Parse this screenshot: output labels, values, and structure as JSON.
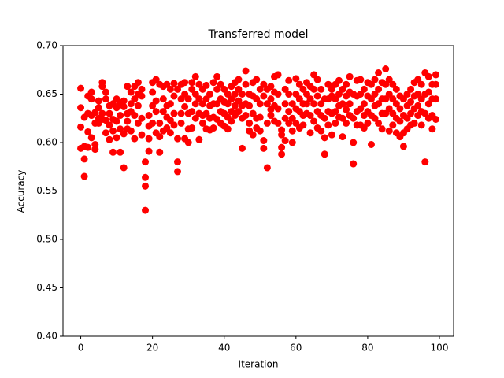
{
  "chart_data": {
    "type": "scatter",
    "title": "Transferred model",
    "xlabel": "Iteration",
    "ylabel": "Accuracy",
    "color": "#ff0000",
    "xlim": [
      -4.95,
      103.95
    ],
    "xticks": [
      0,
      20,
      40,
      60,
      80,
      100
    ],
    "ylim": [
      0.4,
      0.7
    ],
    "yticks": [
      {
        "value": 0.4,
        "label": "0.40"
      },
      0.45,
      {
        "value": 0.5,
        "label": "0.50"
      },
      0.55,
      {
        "value": 0.6,
        "label": "0.60"
      },
      0.65,
      {
        "value": 0.7,
        "label": "0.70"
      }
    ],
    "x": [
      0,
      0,
      0,
      0,
      1,
      1,
      1,
      1,
      2,
      2,
      2,
      2,
      3,
      3,
      3,
      3,
      4,
      4,
      4,
      4,
      5,
      5,
      5,
      5,
      6,
      6,
      6,
      6,
      7,
      7,
      7,
      7,
      8,
      8,
      8,
      8,
      9,
      9,
      9,
      9,
      10,
      10,
      10,
      10,
      11,
      11,
      11,
      11,
      12,
      12,
      12,
      12,
      13,
      13,
      13,
      13,
      14,
      14,
      14,
      14,
      15,
      15,
      15,
      15,
      16,
      16,
      16,
      16,
      17,
      17,
      17,
      17,
      18,
      18,
      18,
      18,
      19,
      19,
      19,
      19,
      20,
      20,
      20,
      20,
      21,
      21,
      21,
      21,
      22,
      22,
      22,
      22,
      23,
      23,
      23,
      23,
      24,
      24,
      24,
      24,
      25,
      25,
      25,
      25,
      26,
      26,
      26,
      26,
      27,
      27,
      27,
      27,
      28,
      28,
      28,
      28,
      29,
      29,
      29,
      29,
      30,
      30,
      30,
      30,
      31,
      31,
      31,
      31,
      32,
      32,
      32,
      32,
      33,
      33,
      33,
      33,
      34,
      34,
      34,
      34,
      35,
      35,
      35,
      35,
      36,
      36,
      36,
      36,
      37,
      37,
      37,
      37,
      38,
      38,
      38,
      38,
      39,
      39,
      39,
      39,
      40,
      40,
      40,
      40,
      41,
      41,
      41,
      41,
      42,
      42,
      42,
      42,
      43,
      43,
      43,
      43,
      44,
      44,
      44,
      44,
      45,
      45,
      45,
      45,
      46,
      46,
      46,
      46,
      47,
      47,
      47,
      47,
      48,
      48,
      48,
      48,
      49,
      49,
      49,
      49,
      50,
      50,
      50,
      50,
      51,
      51,
      51,
      51,
      52,
      52,
      52,
      52,
      53,
      53,
      53,
      53,
      54,
      54,
      54,
      54,
      55,
      55,
      55,
      55,
      56,
      56,
      56,
      56,
      57,
      57,
      57,
      57,
      58,
      58,
      58,
      58,
      59,
      59,
      59,
      59,
      60,
      60,
      60,
      60,
      61,
      61,
      61,
      61,
      62,
      62,
      62,
      62,
      63,
      63,
      63,
      63,
      64,
      64,
      64,
      64,
      65,
      65,
      65,
      65,
      66,
      66,
      66,
      66,
      67,
      67,
      67,
      67,
      68,
      68,
      68,
      68,
      69,
      69,
      69,
      69,
      70,
      70,
      70,
      70,
      71,
      71,
      71,
      71,
      72,
      72,
      72,
      72,
      73,
      73,
      73,
      73,
      74,
      74,
      74,
      74,
      75,
      75,
      75,
      75,
      76,
      76,
      76,
      76,
      77,
      77,
      77,
      77,
      78,
      78,
      78,
      78,
      79,
      79,
      79,
      79,
      80,
      80,
      80,
      80,
      81,
      81,
      81,
      81,
      82,
      82,
      82,
      82,
      83,
      83,
      83,
      83,
      84,
      84,
      84,
      84,
      85,
      85,
      85,
      85,
      86,
      86,
      86,
      86,
      87,
      87,
      87,
      87,
      88,
      88,
      88,
      88,
      89,
      89,
      89,
      89,
      90,
      90,
      90,
      90,
      91,
      91,
      91,
      91,
      92,
      92,
      92,
      92,
      93,
      93,
      93,
      93,
      94,
      94,
      94,
      94,
      95,
      95,
      95,
      95,
      96,
      96,
      96,
      96,
      97,
      97,
      97,
      97,
      98,
      98,
      98,
      98,
      99,
      99,
      99,
      99
    ],
    "values": [
      0.656,
      0.636,
      0.616,
      0.594,
      0.565,
      0.583,
      0.626,
      0.596,
      0.648,
      0.63,
      0.611,
      0.595,
      0.652,
      0.645,
      0.605,
      0.628,
      0.593,
      0.598,
      0.62,
      0.631,
      0.643,
      0.625,
      0.62,
      0.636,
      0.662,
      0.658,
      0.63,
      0.624,
      0.652,
      0.645,
      0.623,
      0.61,
      0.638,
      0.618,
      0.603,
      0.63,
      0.59,
      0.612,
      0.64,
      0.624,
      0.645,
      0.636,
      0.622,
      0.605,
      0.59,
      0.614,
      0.628,
      0.641,
      0.574,
      0.609,
      0.637,
      0.643,
      0.658,
      0.63,
      0.622,
      0.614,
      0.652,
      0.64,
      0.612,
      0.632,
      0.645,
      0.658,
      0.604,
      0.628,
      0.662,
      0.65,
      0.638,
      0.62,
      0.655,
      0.648,
      0.625,
      0.608,
      0.53,
      0.555,
      0.564,
      0.58,
      0.591,
      0.617,
      0.628,
      0.604,
      0.662,
      0.652,
      0.638,
      0.62,
      0.665,
      0.643,
      0.632,
      0.61,
      0.66,
      0.62,
      0.606,
      0.59,
      0.658,
      0.645,
      0.632,
      0.612,
      0.66,
      0.638,
      0.626,
      0.615,
      0.655,
      0.64,
      0.623,
      0.61,
      0.661,
      0.648,
      0.63,
      0.618,
      0.57,
      0.58,
      0.604,
      0.655,
      0.66,
      0.645,
      0.63,
      0.62,
      0.662,
      0.65,
      0.637,
      0.604,
      0.614,
      0.63,
      0.645,
      0.6,
      0.662,
      0.655,
      0.632,
      0.615,
      0.668,
      0.65,
      0.64,
      0.625,
      0.603,
      0.63,
      0.645,
      0.66,
      0.655,
      0.64,
      0.628,
      0.62,
      0.659,
      0.645,
      0.63,
      0.614,
      0.65,
      0.638,
      0.625,
      0.613,
      0.662,
      0.64,
      0.626,
      0.615,
      0.668,
      0.655,
      0.64,
      0.624,
      0.66,
      0.645,
      0.632,
      0.62,
      0.655,
      0.642,
      0.63,
      0.617,
      0.65,
      0.64,
      0.626,
      0.614,
      0.658,
      0.645,
      0.632,
      0.622,
      0.662,
      0.65,
      0.638,
      0.628,
      0.665,
      0.655,
      0.643,
      0.632,
      0.65,
      0.638,
      0.625,
      0.594,
      0.674,
      0.66,
      0.64,
      0.628,
      0.65,
      0.638,
      0.62,
      0.612,
      0.662,
      0.648,
      0.63,
      0.608,
      0.665,
      0.645,
      0.625,
      0.615,
      0.655,
      0.64,
      0.626,
      0.612,
      0.66,
      0.648,
      0.602,
      0.594,
      0.574,
      0.62,
      0.64,
      0.655,
      0.658,
      0.645,
      0.634,
      0.628,
      0.668,
      0.652,
      0.638,
      0.622,
      0.67,
      0.65,
      0.635,
      0.62,
      0.588,
      0.595,
      0.608,
      0.613,
      0.602,
      0.625,
      0.64,
      0.655,
      0.664,
      0.65,
      0.632,
      0.62,
      0.64,
      0.625,
      0.612,
      0.6,
      0.666,
      0.65,
      0.635,
      0.62,
      0.66,
      0.645,
      0.632,
      0.615,
      0.655,
      0.64,
      0.628,
      0.618,
      0.662,
      0.65,
      0.64,
      0.63,
      0.61,
      0.628,
      0.645,
      0.658,
      0.67,
      0.655,
      0.64,
      0.622,
      0.665,
      0.648,
      0.632,
      0.615,
      0.655,
      0.64,
      0.628,
      0.612,
      0.588,
      0.605,
      0.625,
      0.645,
      0.66,
      0.645,
      0.632,
      0.618,
      0.608,
      0.63,
      0.648,
      0.655,
      0.66,
      0.645,
      0.632,
      0.62,
      0.664,
      0.65,
      0.638,
      0.626,
      0.606,
      0.625,
      0.64,
      0.655,
      0.66,
      0.648,
      0.634,
      0.62,
      0.668,
      0.652,
      0.64,
      0.628,
      0.578,
      0.6,
      0.625,
      0.65,
      0.664,
      0.648,
      0.632,
      0.618,
      0.665,
      0.65,
      0.635,
      0.618,
      0.655,
      0.64,
      0.628,
      0.615,
      0.662,
      0.648,
      0.632,
      0.62,
      0.598,
      0.628,
      0.645,
      0.66,
      0.665,
      0.65,
      0.638,
      0.625,
      0.672,
      0.655,
      0.64,
      0.62,
      0.662,
      0.645,
      0.63,
      0.614,
      0.676,
      0.66,
      0.645,
      0.63,
      0.665,
      0.65,
      0.635,
      0.612,
      0.66,
      0.645,
      0.63,
      0.618,
      0.655,
      0.64,
      0.625,
      0.61,
      0.648,
      0.635,
      0.622,
      0.606,
      0.596,
      0.61,
      0.628,
      0.645,
      0.65,
      0.638,
      0.625,
      0.614,
      0.655,
      0.642,
      0.63,
      0.618,
      0.662,
      0.648,
      0.635,
      0.62,
      0.665,
      0.65,
      0.638,
      0.628,
      0.66,
      0.645,
      0.632,
      0.618,
      0.58,
      0.672,
      0.65,
      0.63,
      0.668,
      0.652,
      0.64,
      0.625,
      0.66,
      0.645,
      0.628,
      0.614,
      0.67,
      0.66,
      0.645,
      0.624
    ]
  }
}
